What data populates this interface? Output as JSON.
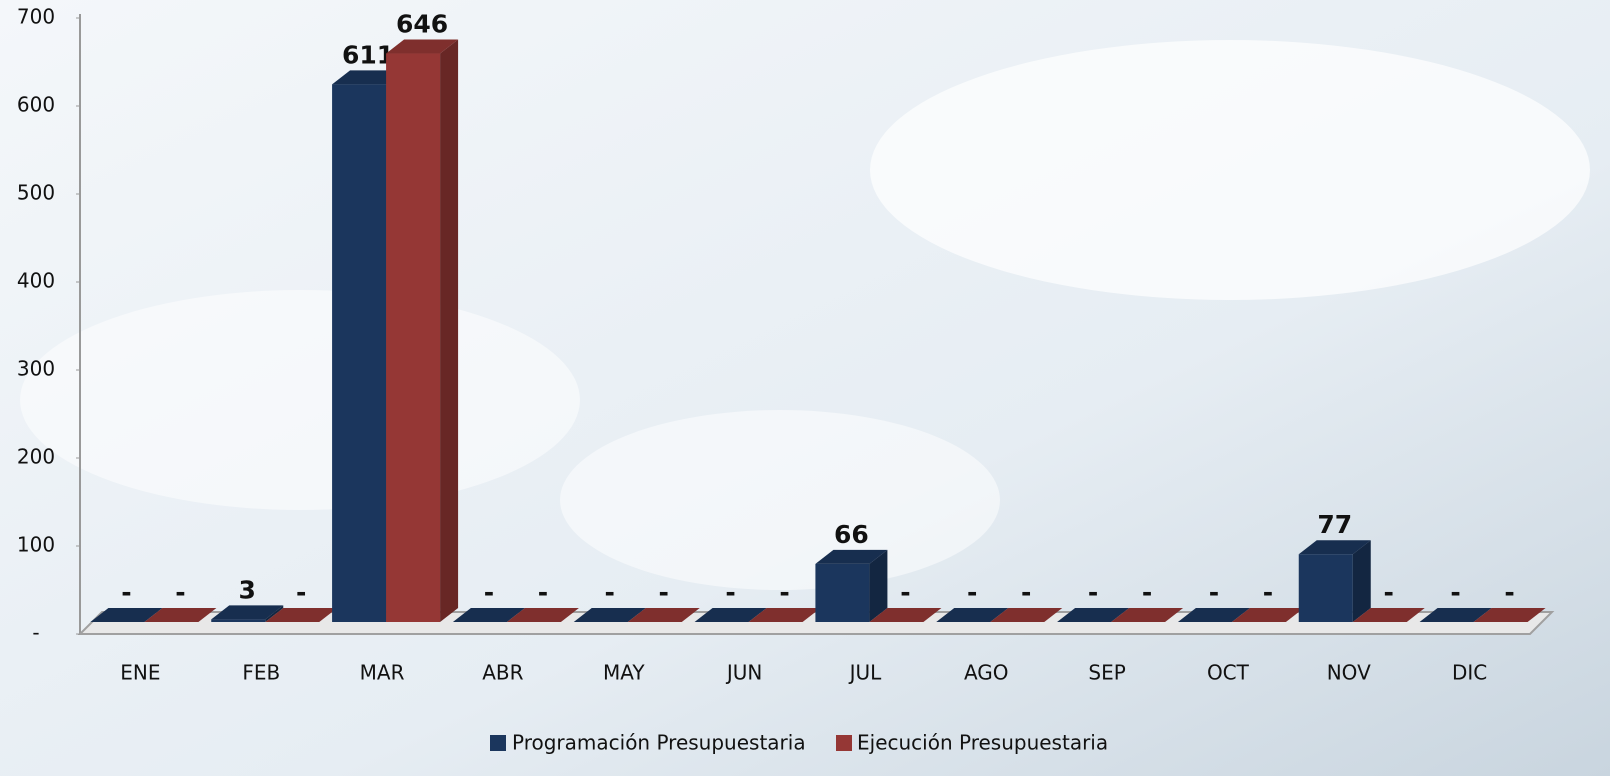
{
  "chart_data": {
    "type": "bar3d",
    "categories": [
      "ENE",
      "FEB",
      "MAR",
      "ABR",
      "MAY",
      "JUN",
      "JUL",
      "AGO",
      "SEP",
      "OCT",
      "NOV",
      "DIC"
    ],
    "series": [
      {
        "name": "Programación Presupuestaria",
        "color": "#1b365d",
        "values": [
          0,
          3,
          611,
          0,
          0,
          0,
          66,
          0,
          0,
          0,
          77,
          0
        ],
        "value_labels": [
          "-",
          "3",
          "611",
          "-",
          "-",
          "-",
          "66",
          "-",
          "-",
          "-",
          "77",
          "-"
        ]
      },
      {
        "name": "Ejecución Presupuestaria",
        "color": "#953735",
        "values": [
          0,
          0,
          646,
          0,
          0,
          0,
          0,
          0,
          0,
          0,
          0,
          0
        ],
        "value_labels": [
          "-",
          "-",
          "646",
          "-",
          "-",
          "-",
          "-",
          "-",
          "-",
          "-",
          "-",
          "-"
        ]
      }
    ],
    "ylim": [
      0,
      700
    ],
    "yticks": [
      {
        "value": 0,
        "label": "-"
      },
      100,
      200,
      300,
      400,
      500,
      600,
      700
    ],
    "legend": "bottom"
  }
}
